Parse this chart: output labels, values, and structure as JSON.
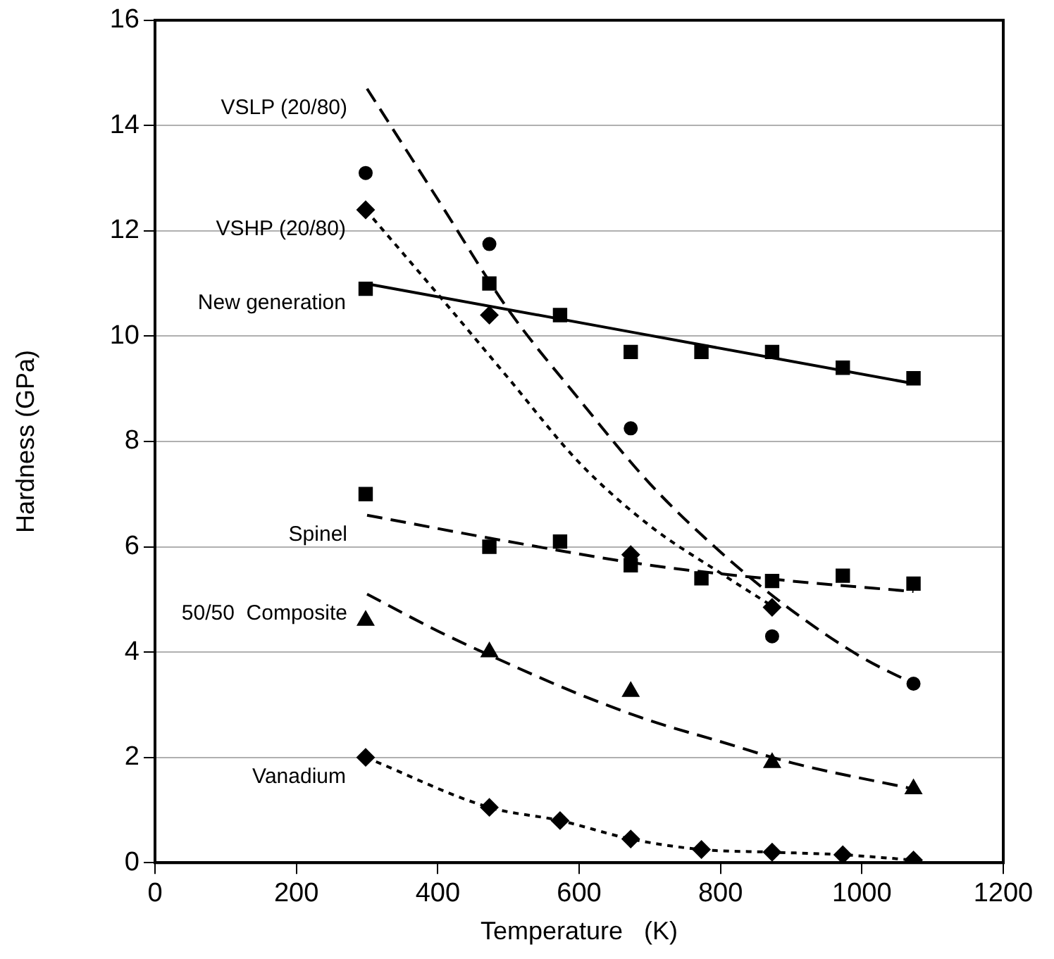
{
  "chart_data": {
    "type": "scatter",
    "xlabel": "Temperature   (K)",
    "ylabel": "Hardness (GPa)",
    "xlim": [
      0,
      1200
    ],
    "xticks": [
      0,
      200,
      400,
      600,
      800,
      1000,
      1200
    ],
    "ylim": [
      0,
      16
    ],
    "yticks": [
      0,
      2,
      4,
      6,
      8,
      10,
      12,
      14,
      16
    ],
    "grid": "y",
    "legend": false,
    "series": [
      {
        "marker": "circle",
        "color": "#000000",
        "x": [
          298,
          473,
          673,
          873,
          1073
        ],
        "values": [
          13.1,
          11.75,
          8.25,
          4.3,
          3.4
        ]
      },
      {
        "type": "line",
        "name": "VSLP (20/80)",
        "marker": "none",
        "line_style": "dashed",
        "color": "#000000",
        "x": [
          300,
          400,
          500,
          600,
          700,
          800,
          900,
          1000,
          1073
        ],
        "values": [
          14.7,
          12.6,
          10.5,
          8.8,
          7.2,
          5.9,
          4.8,
          3.9,
          3.4
        ]
      },
      {
        "marker": "diamond",
        "color": "#000000",
        "x": [
          298,
          473,
          673,
          873
        ],
        "values": [
          12.4,
          10.4,
          5.85,
          4.85
        ]
      },
      {
        "type": "line",
        "name": "VSHP (20/80)",
        "marker": "none",
        "line_style": "dotted",
        "color": "#000000",
        "x": [
          298,
          400,
          500,
          600,
          700,
          800,
          870
        ],
        "values": [
          12.4,
          10.8,
          9.2,
          7.6,
          6.4,
          5.5,
          4.9
        ]
      },
      {
        "marker": "square",
        "color": "#000000",
        "x": [
          298,
          473,
          573,
          673,
          773,
          873,
          973,
          1073
        ],
        "values": [
          10.9,
          11.0,
          10.4,
          9.7,
          9.7,
          9.7,
          9.4,
          9.2
        ]
      },
      {
        "type": "line",
        "name": "New generation",
        "marker": "none",
        "line_style": "solid",
        "color": "#000000",
        "x": [
          298,
          1073
        ],
        "values": [
          11.0,
          9.1
        ]
      },
      {
        "marker": "square",
        "color": "#000000",
        "x": [
          298,
          473,
          573,
          673,
          773,
          873,
          973,
          1073
        ],
        "values": [
          7.0,
          6.0,
          6.1,
          5.65,
          5.4,
          5.35,
          5.45,
          5.3
        ]
      },
      {
        "type": "line",
        "name": "Spinel",
        "marker": "none",
        "line_style": "dashed",
        "color": "#000000",
        "x": [
          300,
          500,
          700,
          900,
          1073
        ],
        "values": [
          6.6,
          6.1,
          5.65,
          5.35,
          5.15
        ]
      },
      {
        "marker": "triangle",
        "color": "#000000",
        "x": [
          298,
          473,
          673,
          873,
          1073
        ],
        "values": [
          4.6,
          4.0,
          3.25,
          1.9,
          1.4
        ]
      },
      {
        "type": "line",
        "name": "50/50  Composite",
        "marker": "none",
        "line_style": "dashed",
        "color": "#000000",
        "x": [
          300,
          400,
          480,
          600,
          700,
          800,
          900,
          1073
        ],
        "values": [
          5.1,
          4.4,
          3.9,
          3.2,
          2.7,
          2.3,
          1.9,
          1.4
        ]
      },
      {
        "marker": "diamond",
        "color": "#000000",
        "x": [
          298,
          473,
          573,
          673,
          773,
          873,
          973,
          1073
        ],
        "values": [
          2.0,
          1.05,
          0.8,
          0.45,
          0.25,
          0.2,
          0.15,
          0.05
        ]
      },
      {
        "type": "line",
        "name": "Vanadium",
        "marker": "none",
        "line_style": "dotted",
        "color": "#000000",
        "x": [
          298,
          473,
          573,
          673,
          773,
          873,
          973,
          1073
        ],
        "values": [
          2.0,
          1.05,
          0.8,
          0.45,
          0.25,
          0.2,
          0.15,
          0.05
        ]
      }
    ]
  }
}
